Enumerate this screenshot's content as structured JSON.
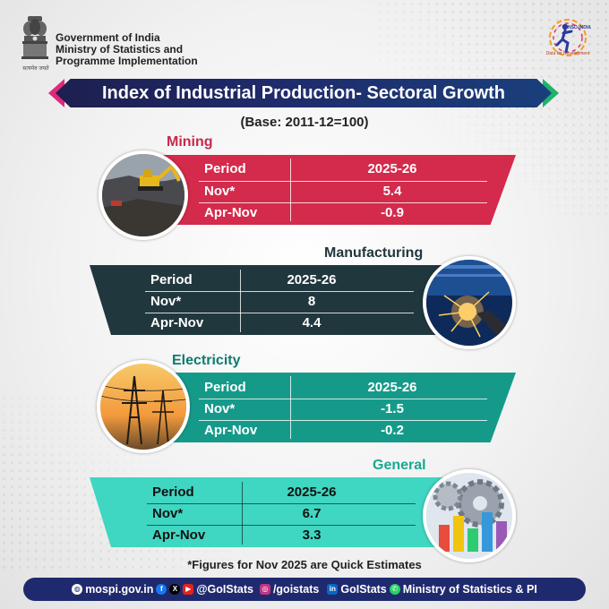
{
  "header": {
    "emblem_caption": "सत्यमेव जयते",
    "org_lines": [
      "Government of India",
      "Ministry of Statistics and",
      "Programme Implementation"
    ],
    "logo_icon": "nsso-runner-logo",
    "logo_text": "NSO INDIA",
    "logo_tagline": "Data for Development"
  },
  "title": "Index of Industrial Production- Sectoral Growth",
  "subtitle": "(Base: 2011-12=100)",
  "colors": {
    "mining": "#d42a4b",
    "manufacturing": "#21373e",
    "electricity": "#159a8a",
    "general": "#3fd6c2",
    "title_banner": "#1d1f4e",
    "footer": "#1f2a6e"
  },
  "sections": {
    "mining": {
      "heading": "Mining",
      "col_period": "Period",
      "col_year": "2025-26",
      "rows": [
        {
          "period": "Nov*",
          "value": "5.4"
        },
        {
          "period": "Apr-Nov",
          "value": "-0.9"
        }
      ],
      "image_icon": "mining-excavator-photo"
    },
    "manufacturing": {
      "heading": "Manufacturing",
      "col_period": "Period",
      "col_year": "2025-26",
      "rows": [
        {
          "period": "Nov*",
          "value": "8"
        },
        {
          "period": "Apr-Nov",
          "value": "4.4"
        }
      ],
      "image_icon": "welding-sparks-photo"
    },
    "electricity": {
      "heading": "Electricity",
      "col_period": "Period",
      "col_year": "2025-26",
      "rows": [
        {
          "period": "Nov*",
          "value": "-1.5"
        },
        {
          "period": "Apr-Nov",
          "value": "-0.2"
        }
      ],
      "image_icon": "power-pylons-photo"
    },
    "general": {
      "heading": "General",
      "col_period": "Period",
      "col_year": "2025-26",
      "rows": [
        {
          "period": "Nov*",
          "value": "6.7"
        },
        {
          "period": "Apr-Nov",
          "value": "3.3"
        }
      ],
      "image_icon": "gears-bar-chart-photo"
    }
  },
  "footnote": "*Figures for Nov 2025 are Quick Estimates",
  "footer": {
    "website": "mospi.gov.in",
    "social_handle": "@GoIStats",
    "instagram": "/goistats",
    "linkedin": "GoIStats",
    "whatsapp": "Ministry of Statistics & PI",
    "icons": [
      "globe-icon",
      "facebook-icon",
      "x-icon",
      "youtube-icon",
      "instagram-icon",
      "linkedin-icon",
      "whatsapp-icon"
    ]
  }
}
